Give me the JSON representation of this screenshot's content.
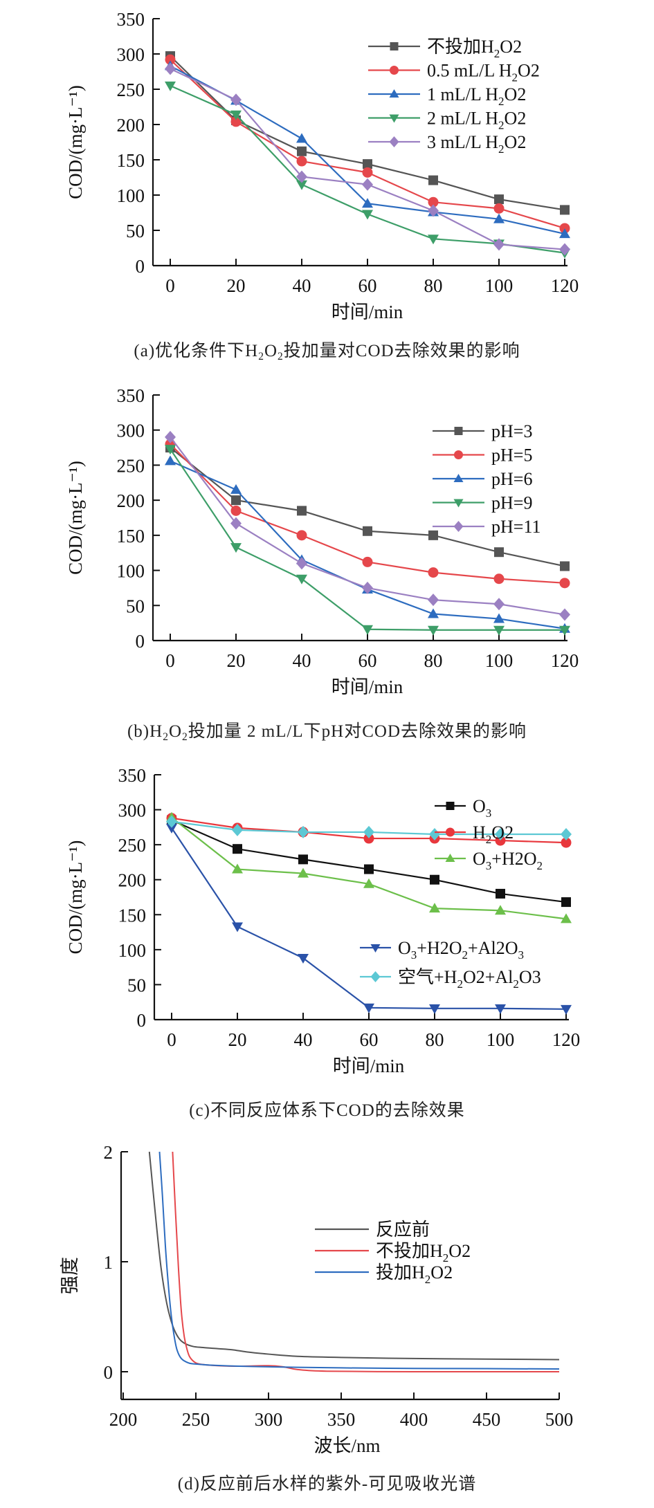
{
  "chart_data": [
    {
      "id": "a",
      "type": "line",
      "caption": "(a)优化条件下H2O2投加量对COD去除效果的影响",
      "xlabel": "时间/min",
      "ylabel": "COD/(mg·L⁻¹)",
      "x": [
        0,
        20,
        40,
        60,
        80,
        100,
        120
      ],
      "xticks": [
        0,
        20,
        40,
        60,
        80,
        100,
        120
      ],
      "yticks": [
        0,
        50,
        100,
        150,
        200,
        250,
        300,
        350
      ],
      "xlim": [
        0,
        120
      ],
      "ylim": [
        0,
        350
      ],
      "legend_position": "top-right",
      "series": [
        {
          "name": "不投加H2O2",
          "color": "#555555",
          "marker": "square",
          "values": [
            297,
            206,
            162,
            144,
            121,
            94,
            79
          ]
        },
        {
          "name": "0.5 mL/L H2O2",
          "color": "#e5474b",
          "marker": "circle",
          "values": [
            292,
            204,
            148,
            132,
            90,
            81,
            53
          ]
        },
        {
          "name": "1 mL/L H2O2",
          "color": "#2d6cbf",
          "marker": "triangle-up",
          "values": [
            283,
            234,
            180,
            88,
            76,
            66,
            45
          ]
        },
        {
          "name": "2 mL/L H2O2",
          "color": "#3d9e68",
          "marker": "triangle-down",
          "values": [
            255,
            214,
            115,
            73,
            38,
            31,
            18
          ]
        },
        {
          "name": "3 mL/L H2O2",
          "color": "#9b80c2",
          "marker": "diamond",
          "values": [
            279,
            235,
            126,
            115,
            78,
            30,
            23
          ]
        }
      ]
    },
    {
      "id": "b",
      "type": "line",
      "caption": "(b)H2O2投加量2 mL/L下pH对COD去除效果的影响",
      "xlabel": "时间/min",
      "ylabel": "COD/(mg·L⁻¹)",
      "x": [
        0,
        20,
        40,
        60,
        80,
        100,
        120
      ],
      "xticks": [
        0,
        20,
        40,
        60,
        80,
        100,
        120
      ],
      "yticks": [
        0,
        50,
        100,
        150,
        200,
        250,
        300,
        350
      ],
      "xlim": [
        0,
        120
      ],
      "ylim": [
        0,
        350
      ],
      "legend_position": "top-right",
      "series": [
        {
          "name": "pH=3",
          "color": "#555555",
          "marker": "square",
          "values": [
            275,
            200,
            185,
            156,
            150,
            126,
            106
          ]
        },
        {
          "name": "pH=5",
          "color": "#e5474b",
          "marker": "circle",
          "values": [
            280,
            185,
            150,
            112,
            97,
            88,
            82
          ]
        },
        {
          "name": "pH=6",
          "color": "#2d6cbf",
          "marker": "triangle-up",
          "values": [
            256,
            215,
            115,
            73,
            38,
            31,
            17
          ]
        },
        {
          "name": "pH=9",
          "color": "#3d9e68",
          "marker": "triangle-down",
          "values": [
            273,
            133,
            88,
            16,
            15,
            15,
            15
          ]
        },
        {
          "name": "pH=11",
          "color": "#9b80c2",
          "marker": "diamond",
          "values": [
            290,
            167,
            110,
            75,
            58,
            52,
            37
          ]
        }
      ]
    },
    {
      "id": "c",
      "type": "line",
      "caption": "(c)不同反应体系下COD的去除效果",
      "xlabel": "时间/min",
      "ylabel": "COD/(mg·L⁻¹)",
      "x": [
        0,
        20,
        40,
        60,
        80,
        100,
        120
      ],
      "xticks": [
        0,
        20,
        40,
        60,
        80,
        100,
        120
      ],
      "yticks": [
        0,
        50,
        100,
        150,
        200,
        250,
        300,
        350
      ],
      "xlim": [
        0,
        120
      ],
      "ylim": [
        0,
        350
      ],
      "legend_position": "top-right / center-right",
      "series": [
        {
          "name": "O3",
          "color": "#111111",
          "marker": "square",
          "values": [
            285,
            244,
            229,
            215,
            200,
            180,
            168
          ]
        },
        {
          "name": "H2O2",
          "color": "#e8373c",
          "marker": "circle",
          "values": [
            288,
            274,
            268,
            259,
            259,
            256,
            253
          ]
        },
        {
          "name": "O3+H2O2",
          "color": "#6cbf4a",
          "marker": "triangle-up",
          "values": [
            289,
            215,
            209,
            194,
            159,
            156,
            144
          ]
        },
        {
          "name": "O3+H2O2+Al2O3",
          "color": "#2a52a8",
          "marker": "triangle-down",
          "values": [
            274,
            133,
            88,
            17,
            16,
            16,
            15
          ]
        },
        {
          "name": "空气+H2O2+Al2O3",
          "color": "#5cc8d4",
          "marker": "diamond",
          "values": [
            283,
            271,
            268,
            268,
            265,
            265,
            265
          ]
        }
      ]
    },
    {
      "id": "d",
      "type": "line",
      "caption": "(d)反应前后水样的紫外-可见吸收光谱",
      "xlabel": "波长/nm",
      "ylabel": "强度",
      "xticks": [
        200,
        250,
        300,
        350,
        400,
        450,
        500
      ],
      "yticks": [
        0,
        1,
        2
      ],
      "xlim": [
        200,
        500
      ],
      "ylim": [
        -0.25,
        2
      ],
      "legend_position": "top-right",
      "series": [
        {
          "name": "反应前",
          "color": "#555555",
          "x": [
            218,
            222,
            226,
            230,
            234,
            238,
            242,
            248,
            255,
            265,
            275,
            285,
            300,
            320,
            350,
            400,
            450,
            500
          ],
          "y": [
            2.0,
            1.45,
            0.95,
            0.62,
            0.42,
            0.31,
            0.26,
            0.23,
            0.22,
            0.21,
            0.2,
            0.18,
            0.16,
            0.14,
            0.13,
            0.12,
            0.115,
            0.11
          ]
        },
        {
          "name": "不投加H2O2",
          "color": "#e5474b",
          "x": [
            234,
            236,
            238,
            240,
            242,
            244,
            246,
            250,
            255,
            265,
            280,
            300,
            310,
            320,
            340,
            400,
            450,
            500
          ],
          "y": [
            2.0,
            1.45,
            0.95,
            0.55,
            0.32,
            0.2,
            0.13,
            0.08,
            0.065,
            0.055,
            0.05,
            0.055,
            0.045,
            0.02,
            0.005,
            0.0,
            0.0,
            0.0
          ]
        },
        {
          "name": "投加H2O2",
          "color": "#2d6cbf",
          "x": [
            225,
            227,
            229,
            231,
            233,
            235,
            237,
            240,
            245,
            250,
            260,
            280,
            300,
            320,
            350,
            400,
            450,
            500
          ],
          "y": [
            2.0,
            1.6,
            1.15,
            0.8,
            0.52,
            0.33,
            0.2,
            0.12,
            0.08,
            0.07,
            0.06,
            0.05,
            0.045,
            0.04,
            0.035,
            0.03,
            0.028,
            0.025
          ]
        }
      ]
    }
  ],
  "captions": {
    "a": {
      "prefix": "(a)优化条件下",
      "h2o2": "H",
      "mid": "投加量对COD去除效果的影响"
    },
    "b": {
      "prefix": "(b)",
      "mid": "投加量 2 mL/L下pH对COD去除效果的影响"
    },
    "c": {
      "text": "(c)不同反应体系下COD的去除效果"
    },
    "d": {
      "text": "(d)反应前后水样的紫外-可见吸收光谱"
    }
  }
}
